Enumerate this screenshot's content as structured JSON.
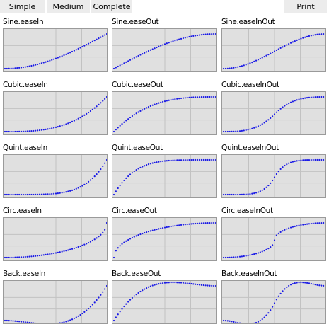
{
  "toolbar": {
    "simple_label": "Simple",
    "medium_label": "Medium",
    "complete_label": "Complete",
    "print_label": "Print"
  },
  "colors": {
    "dot": "#1a1ae6",
    "plot_background": "#e0e0e0",
    "grid": "#c2c2c2",
    "button_background": "#ececec"
  },
  "charts": [
    {
      "title": "Sine.easeIn",
      "family": "sine",
      "mode": "in"
    },
    {
      "title": "Sine.easeOut",
      "family": "sine",
      "mode": "out"
    },
    {
      "title": "Sine.easeInOut",
      "family": "sine",
      "mode": "inout"
    },
    {
      "title": "Cubic.easeIn",
      "family": "cubic",
      "mode": "in"
    },
    {
      "title": "Cubic.easeOut",
      "family": "cubic",
      "mode": "out"
    },
    {
      "title": "Cubic.easeInOut",
      "family": "cubic",
      "mode": "inout"
    },
    {
      "title": "Quint.easeIn",
      "family": "quint",
      "mode": "in"
    },
    {
      "title": "Quint.easeOut",
      "family": "quint",
      "mode": "out"
    },
    {
      "title": "Quint.easeInOut",
      "family": "quint",
      "mode": "inout"
    },
    {
      "title": "Circ.easeIn",
      "family": "circ",
      "mode": "in"
    },
    {
      "title": "Circ.easeOut",
      "family": "circ",
      "mode": "out"
    },
    {
      "title": "Circ.easeInOut",
      "family": "circ",
      "mode": "inout"
    },
    {
      "title": "Back.easeIn",
      "family": "back",
      "mode": "in"
    },
    {
      "title": "Back.easeOut",
      "family": "back",
      "mode": "out"
    },
    {
      "title": "Back.easeInOut",
      "family": "back",
      "mode": "inout"
    }
  ]
}
